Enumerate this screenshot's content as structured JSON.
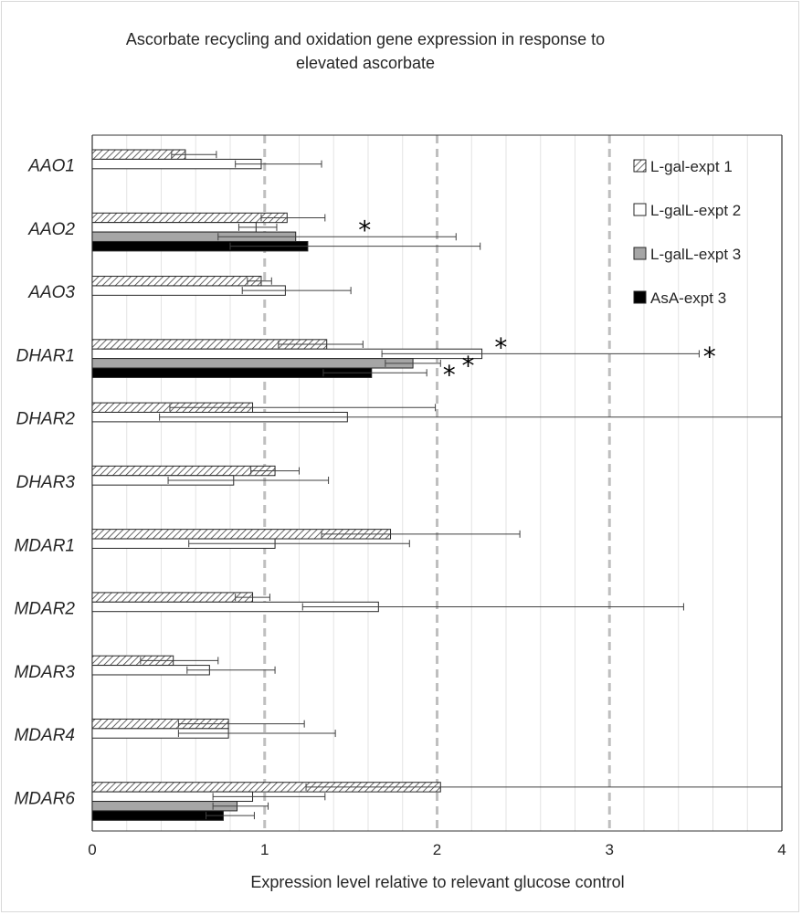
{
  "chart_data": {
    "type": "bar",
    "orientation": "horizontal",
    "title": "Ascorbate recycling and oxidation gene expression in response to elevated ascorbate",
    "title_lines": [
      "Ascorbate recycling and oxidation gene expression in response to",
      "elevated ascorbate"
    ],
    "xlabel": "Expression level relative to relevant glucose control",
    "ylabel": "",
    "xlim": [
      0,
      4
    ],
    "xticks": [
      "0",
      "1",
      "2",
      "3",
      "4"
    ],
    "reference_lines": [
      1,
      2,
      3
    ],
    "legend_position": "top-right",
    "categories": [
      "AAO1",
      "AAO2",
      "AAO3",
      "DHAR1",
      "DHAR2",
      "DHAR3",
      "MDAR1",
      "MDAR2",
      "MDAR3",
      "MDAR4",
      "MDAR6"
    ],
    "series": [
      {
        "name": "L-gal-expt 1",
        "style": "hatched",
        "fill": "#ffffff",
        "values": [
          0.54,
          1.13,
          0.98,
          1.36,
          0.93,
          1.06,
          1.73,
          0.93,
          0.47,
          0.79,
          2.02
        ],
        "err_lo": [
          0.46,
          0.98,
          0.9,
          1.08,
          0.45,
          0.92,
          1.33,
          0.83,
          0.28,
          0.5,
          1.24
        ],
        "err_hi": [
          0.72,
          1.35,
          1.04,
          1.57,
          1.99,
          1.2,
          2.48,
          1.03,
          0.73,
          1.23,
          4.0
        ]
      },
      {
        "name": "L-galL-expt 2",
        "style": "empty",
        "fill": "#ffffff",
        "values": [
          0.98,
          0.95,
          1.12,
          2.26,
          1.48,
          0.82,
          1.06,
          1.66,
          0.68,
          0.79,
          0.93
        ],
        "err_lo": [
          0.83,
          0.85,
          0.87,
          1.68,
          0.39,
          0.44,
          0.56,
          1.22,
          0.55,
          0.5,
          0.7
        ],
        "err_hi": [
          1.33,
          1.07,
          1.5,
          3.52,
          4.0,
          1.37,
          1.84,
          3.43,
          1.06,
          1.41,
          1.35
        ]
      },
      {
        "name": "L-galL-expt 3",
        "style": "gray",
        "fill": "#a6a6a6",
        "values": [
          null,
          1.18,
          null,
          1.86,
          null,
          null,
          null,
          null,
          null,
          null,
          0.84
        ],
        "err_lo": [
          null,
          0.73,
          null,
          1.7,
          null,
          null,
          null,
          null,
          null,
          null,
          0.7
        ],
        "err_hi": [
          null,
          2.11,
          null,
          2.02,
          null,
          null,
          null,
          null,
          null,
          null,
          1.02
        ]
      },
      {
        "name": "AsA-expt 3",
        "style": "black",
        "fill": "#000000",
        "values": [
          null,
          1.25,
          null,
          1.62,
          null,
          null,
          null,
          null,
          null,
          null,
          0.76
        ],
        "err_lo": [
          null,
          0.8,
          null,
          1.34,
          null,
          null,
          null,
          null,
          null,
          null,
          0.66
        ],
        "err_hi": [
          null,
          2.25,
          null,
          1.94,
          null,
          null,
          null,
          null,
          null,
          null,
          0.94
        ]
      }
    ],
    "significance_markers": [
      {
        "symbol": "*",
        "category": "AAO2",
        "x": 1.58,
        "row": "upper"
      },
      {
        "symbol": "*",
        "category": "DHAR1",
        "x": 2.37,
        "row": "top"
      },
      {
        "symbol": "*",
        "category": "DHAR1",
        "x": 3.58,
        "row": "upper"
      },
      {
        "symbol": "*",
        "category": "DHAR1",
        "x": 2.18,
        "row": "lower"
      },
      {
        "symbol": "*",
        "category": "DHAR1",
        "x": 2.07,
        "row": "bottom"
      }
    ]
  }
}
